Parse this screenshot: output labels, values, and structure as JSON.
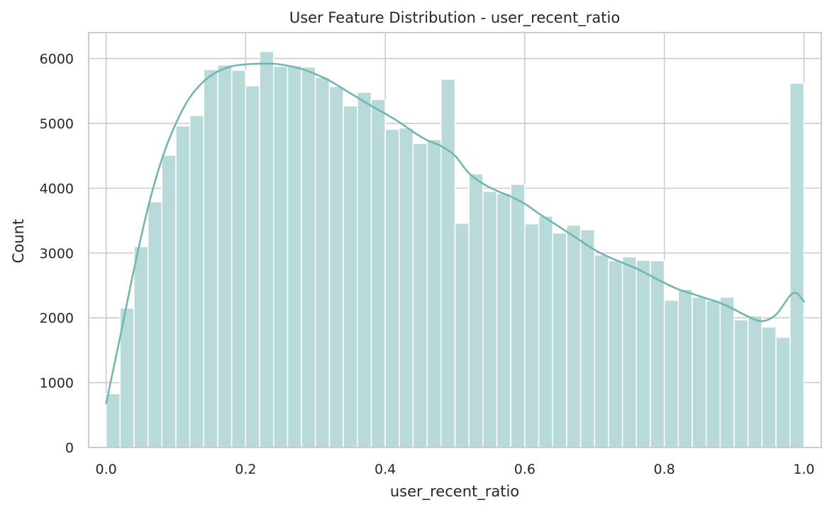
{
  "chart_data": {
    "type": "bar",
    "title": "User Feature Distribution - user_recent_ratio",
    "xlabel": "user_recent_ratio",
    "ylabel": "Count",
    "xlim": [
      -0.025,
      1.025
    ],
    "ylim": [
      0,
      6400
    ],
    "x_ticks": [
      0.0,
      0.2,
      0.4,
      0.6,
      0.8,
      1.0
    ],
    "x_tick_labels": [
      "0.0",
      "0.2",
      "0.4",
      "0.6",
      "0.8",
      "1.0"
    ],
    "y_ticks": [
      0,
      1000,
      2000,
      3000,
      4000,
      5000,
      6000
    ],
    "y_tick_labels": [
      "0",
      "1000",
      "2000",
      "3000",
      "4000",
      "5000",
      "6000"
    ],
    "grid": true,
    "bin_edges_start": 0.0,
    "bin_width": 0.02,
    "values": [
      830,
      2150,
      3100,
      3790,
      4510,
      4960,
      5120,
      5830,
      5900,
      5820,
      5580,
      6110,
      5880,
      5890,
      5870,
      5710,
      5570,
      5270,
      5480,
      5370,
      4910,
      4930,
      4690,
      4750,
      5680,
      3460,
      4220,
      3950,
      3920,
      4060,
      3450,
      3570,
      3310,
      3430,
      3360,
      2970,
      2880,
      2940,
      2890,
      2880,
      2270,
      2440,
      2320,
      2270,
      2320,
      1970,
      2030,
      1860,
      1700,
      5620
    ],
    "kde": {
      "x": [
        0.0,
        0.02,
        0.04,
        0.06,
        0.08,
        0.1,
        0.12,
        0.14,
        0.16,
        0.18,
        0.2,
        0.22,
        0.24,
        0.26,
        0.28,
        0.3,
        0.32,
        0.34,
        0.36,
        0.38,
        0.4,
        0.42,
        0.44,
        0.46,
        0.48,
        0.5,
        0.52,
        0.54,
        0.56,
        0.58,
        0.6,
        0.62,
        0.64,
        0.66,
        0.68,
        0.7,
        0.72,
        0.74,
        0.76,
        0.78,
        0.8,
        0.82,
        0.84,
        0.86,
        0.88,
        0.9,
        0.92,
        0.94,
        0.96,
        0.98,
        0.99,
        1.0
      ],
      "y": [
        680,
        1700,
        2750,
        3700,
        4450,
        5000,
        5400,
        5650,
        5800,
        5880,
        5910,
        5920,
        5920,
        5890,
        5840,
        5760,
        5660,
        5530,
        5400,
        5270,
        5150,
        5020,
        4870,
        4740,
        4650,
        4500,
        4230,
        4070,
        3960,
        3870,
        3760,
        3610,
        3470,
        3330,
        3190,
        3050,
        2940,
        2850,
        2760,
        2650,
        2540,
        2440,
        2370,
        2300,
        2230,
        2130,
        2020,
        1950,
        2050,
        2340,
        2380,
        2250
      ]
    },
    "colors": {
      "bar_fill": "#b8dbda",
      "bar_stroke": "#ffffff",
      "kde_line": "#72b6b0",
      "grid": "#cccccc",
      "spine": "#cccccc",
      "text": "#262626"
    }
  }
}
